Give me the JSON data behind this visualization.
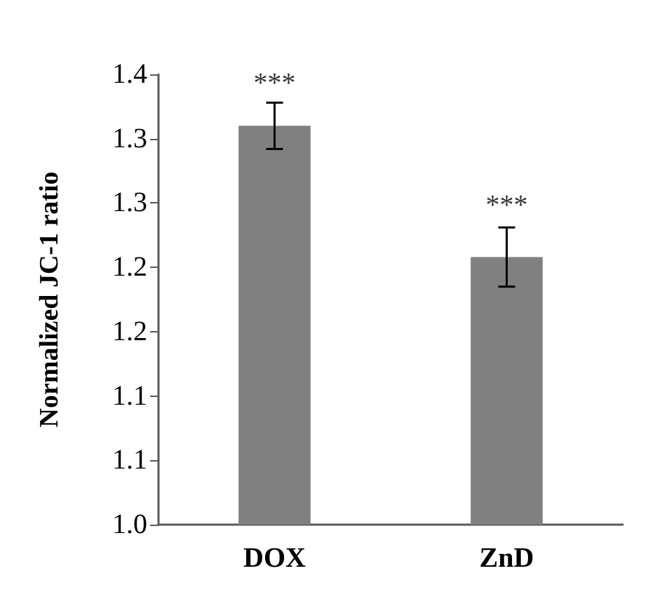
{
  "chart_data": {
    "type": "bar",
    "ylabel": "Normalized JC-1 ratio",
    "categories": [
      "DOX",
      "ZnD"
    ],
    "values": [
      1.31,
      1.208
    ],
    "color": "#808080",
    "errors": [
      0.018,
      0.023
    ],
    "ylim": [
      1.0,
      1.35
    ],
    "yticks": [
      {
        "value": 1.0,
        "label": "1.0"
      },
      {
        "value": 1.05,
        "label": "1.1"
      },
      {
        "value": 1.1,
        "label": "1.1"
      },
      {
        "value": 1.15,
        "label": "1.2"
      },
      {
        "value": 1.2,
        "label": "1.2"
      },
      {
        "value": 1.25,
        "label": "1.3"
      },
      {
        "value": 1.3,
        "label": "1.3"
      },
      {
        "value": 1.35,
        "label": "1.4"
      }
    ],
    "annotations": [
      {
        "text": "***",
        "x": "DOX",
        "y": 1.33
      },
      {
        "text": "***",
        "x": "ZnD",
        "y": 1.235
      }
    ],
    "grid": false
  }
}
